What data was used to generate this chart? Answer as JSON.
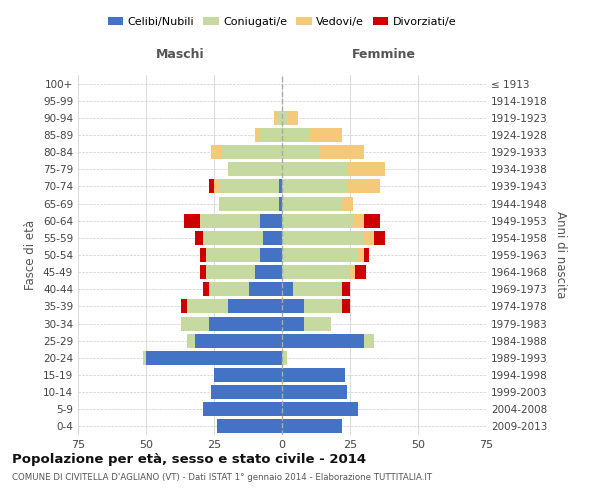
{
  "age_groups": [
    "0-4",
    "5-9",
    "10-14",
    "15-19",
    "20-24",
    "25-29",
    "30-34",
    "35-39",
    "40-44",
    "45-49",
    "50-54",
    "55-59",
    "60-64",
    "65-69",
    "70-74",
    "75-79",
    "80-84",
    "85-89",
    "90-94",
    "95-99",
    "100+"
  ],
  "birth_years": [
    "2009-2013",
    "2004-2008",
    "1999-2003",
    "1994-1998",
    "1989-1993",
    "1984-1988",
    "1979-1983",
    "1974-1978",
    "1969-1973",
    "1964-1968",
    "1959-1963",
    "1954-1958",
    "1949-1953",
    "1944-1948",
    "1939-1943",
    "1934-1938",
    "1929-1933",
    "1924-1928",
    "1919-1923",
    "1914-1918",
    "≤ 1913"
  ],
  "male_celibi": [
    24,
    29,
    26,
    25,
    50,
    32,
    27,
    20,
    12,
    10,
    8,
    7,
    8,
    1,
    1,
    0,
    0,
    0,
    0,
    0,
    0
  ],
  "male_coniugati": [
    0,
    0,
    0,
    0,
    1,
    3,
    10,
    15,
    15,
    18,
    20,
    22,
    22,
    22,
    22,
    20,
    22,
    8,
    2,
    0,
    0
  ],
  "male_vedovi": [
    0,
    0,
    0,
    0,
    0,
    0,
    0,
    0,
    0,
    0,
    0,
    0,
    0,
    0,
    2,
    0,
    4,
    2,
    1,
    0,
    0
  ],
  "male_divorziati": [
    0,
    0,
    0,
    0,
    0,
    0,
    0,
    2,
    2,
    2,
    2,
    3,
    6,
    0,
    2,
    0,
    0,
    0,
    0,
    0,
    0
  ],
  "female_celibi": [
    22,
    28,
    24,
    23,
    0,
    30,
    8,
    8,
    4,
    0,
    0,
    0,
    0,
    0,
    0,
    0,
    0,
    0,
    0,
    0,
    0
  ],
  "female_coniugati": [
    0,
    0,
    0,
    0,
    2,
    4,
    10,
    14,
    18,
    25,
    28,
    30,
    26,
    22,
    24,
    24,
    14,
    10,
    2,
    0,
    0
  ],
  "female_vedovi": [
    0,
    0,
    0,
    0,
    0,
    0,
    0,
    0,
    0,
    2,
    2,
    4,
    4,
    4,
    12,
    14,
    16,
    12,
    4,
    0,
    0
  ],
  "female_divorziati": [
    0,
    0,
    0,
    0,
    0,
    0,
    0,
    3,
    3,
    4,
    2,
    4,
    6,
    0,
    0,
    0,
    0,
    0,
    0,
    0,
    0
  ],
  "color_celibi": "#4472c4",
  "color_coniugati": "#c5d9a0",
  "color_vedovi": "#f5c97a",
  "color_divorziati": "#cc0000",
  "title": "Popolazione per età, sesso e stato civile - 2014",
  "subtitle": "COMUNE DI CIVITELLA D'AGLIANO (VT) - Dati ISTAT 1° gennaio 2014 - Elaborazione TUTTITALIA.IT",
  "xlabel_left": "Maschi",
  "xlabel_right": "Femmine",
  "ylabel_left": "Fasce di età",
  "ylabel_right": "Anni di nascita",
  "xlim": 75,
  "background_color": "#ffffff",
  "grid_color": "#cccccc"
}
